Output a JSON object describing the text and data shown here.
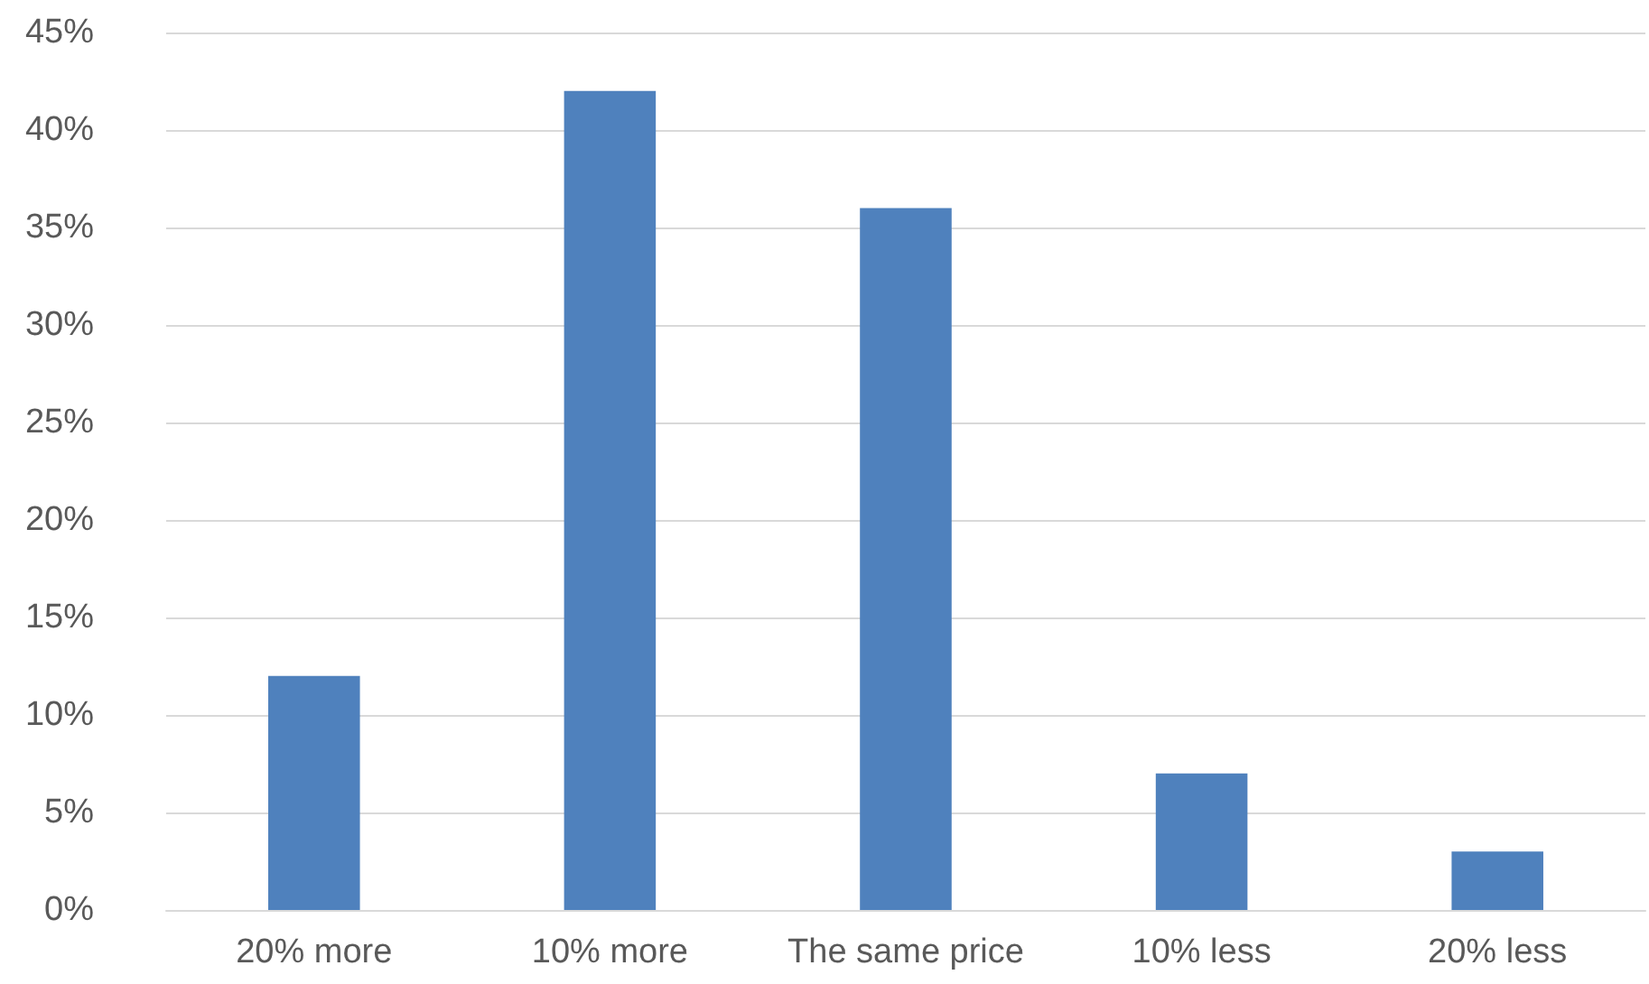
{
  "chart_data": {
    "type": "bar",
    "categories": [
      "20% more",
      "10% more",
      "The same price",
      "10% less",
      "20% less"
    ],
    "values": [
      12,
      42,
      36,
      7,
      3
    ],
    "color": "#4f81bd",
    "ylim": [
      0,
      45
    ],
    "yticks": [
      {
        "value": 0,
        "label": "0%"
      },
      {
        "value": 5,
        "label": "5%"
      },
      {
        "value": 10,
        "label": "10%"
      },
      {
        "value": 15,
        "label": "15%"
      },
      {
        "value": 20,
        "label": "20%"
      },
      {
        "value": 25,
        "label": "25%"
      },
      {
        "value": 30,
        "label": "30%"
      },
      {
        "value": 35,
        "label": "35%"
      },
      {
        "value": 40,
        "label": "40%"
      },
      {
        "value": 45,
        "label": "45%"
      }
    ],
    "grid": "y"
  }
}
